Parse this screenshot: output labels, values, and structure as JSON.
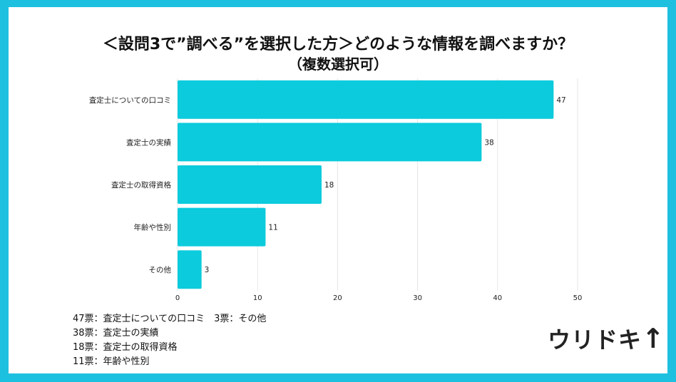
{
  "title": "＜設問3で”調べる”を選択した方＞どのような情報を調べますか？",
  "subtitle": "（複数選択可）",
  "chart_data": {
    "type": "bar",
    "orientation": "horizontal",
    "categories": [
      "査定士についての口コミ",
      "査定士の実績",
      "査定士の取得資格",
      "年齢や性別",
      "その他"
    ],
    "values": [
      47,
      38,
      18,
      11,
      3
    ],
    "xlim": [
      0,
      50
    ],
    "xticks": [
      0,
      10,
      20,
      30,
      40,
      50
    ],
    "grid": true,
    "bar_color": "#0ccbdc"
  },
  "legend_lines": [
    "47票：査定士についての口コミ　3票：その他",
    "38票：査定士の実績",
    "18票：査定士の取得資格",
    "11票：年齢や性別"
  ],
  "logo": "ウリドキ"
}
